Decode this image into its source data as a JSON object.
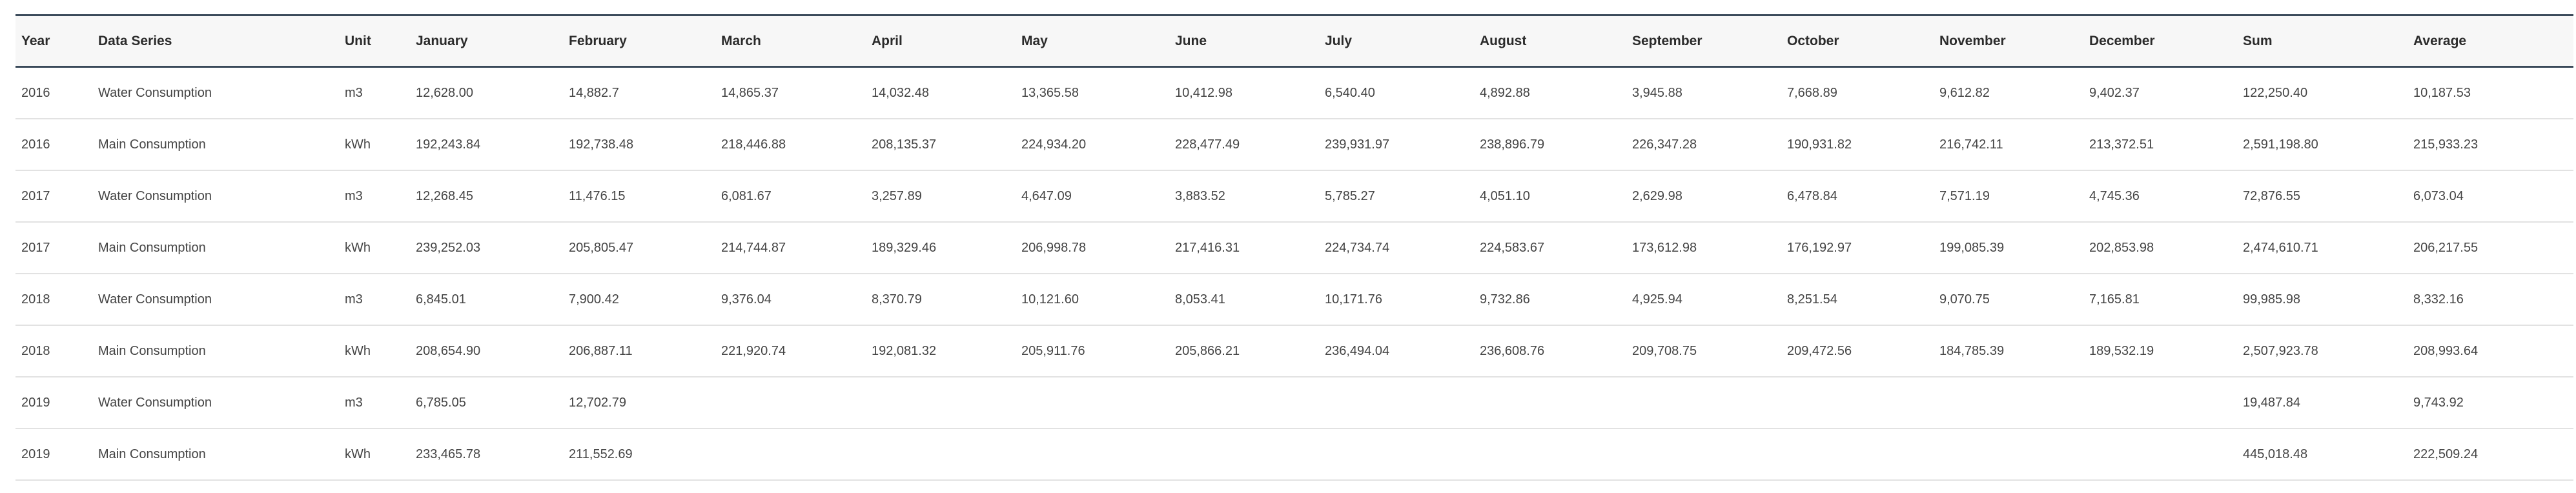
{
  "table": {
    "columns": [
      "Year",
      "Data Series",
      "Unit",
      "January",
      "February",
      "March",
      "April",
      "May",
      "June",
      "July",
      "August",
      "September",
      "October",
      "November",
      "December",
      "Sum",
      "Average"
    ],
    "rows": [
      [
        "2016",
        "Water Consumption",
        "m3",
        "12,628.00",
        "14,882.7",
        "14,865.37",
        "14,032.48",
        "13,365.58",
        "10,412.98",
        "6,540.40",
        "4,892.88",
        "3,945.88",
        "7,668.89",
        "9,612.82",
        "9,402.37",
        "122,250.40",
        "10,187.53"
      ],
      [
        "2016",
        "Main Consumption",
        "kWh",
        "192,243.84",
        "192,738.48",
        "218,446.88",
        "208,135.37",
        "224,934.20",
        "228,477.49",
        "239,931.97",
        "238,896.79",
        "226,347.28",
        "190,931.82",
        "216,742.11",
        "213,372.51",
        "2,591,198.80",
        "215,933.23"
      ],
      [
        "2017",
        "Water Consumption",
        "m3",
        "12,268.45",
        "11,476.15",
        "6,081.67",
        "3,257.89",
        "4,647.09",
        "3,883.52",
        "5,785.27",
        "4,051.10",
        "2,629.98",
        "6,478.84",
        "7,571.19",
        "4,745.36",
        "72,876.55",
        "6,073.04"
      ],
      [
        "2017",
        "Main Consumption",
        "kWh",
        "239,252.03",
        "205,805.47",
        "214,744.87",
        "189,329.46",
        "206,998.78",
        "217,416.31",
        "224,734.74",
        "224,583.67",
        "173,612.98",
        "176,192.97",
        "199,085.39",
        "202,853.98",
        "2,474,610.71",
        "206,217.55"
      ],
      [
        "2018",
        "Water Consumption",
        "m3",
        "6,845.01",
        "7,900.42",
        "9,376.04",
        "8,370.79",
        "10,121.60",
        "8,053.41",
        "10,171.76",
        "9,732.86",
        "4,925.94",
        "8,251.54",
        "9,070.75",
        "7,165.81",
        "99,985.98",
        "8,332.16"
      ],
      [
        "2018",
        "Main Consumption",
        "kWh",
        "208,654.90",
        "206,887.11",
        "221,920.74",
        "192,081.32",
        "205,911.76",
        "205,866.21",
        "236,494.04",
        "236,608.76",
        "209,708.75",
        "209,472.56",
        "184,785.39",
        "189,532.19",
        "2,507,923.78",
        "208,993.64"
      ],
      [
        "2019",
        "Water Consumption",
        "m3",
        "6,785.05",
        "12,702.79",
        "",
        "",
        "",
        "",
        "",
        "",
        "",
        "",
        "",
        "",
        "19,487.84",
        "9,743.92"
      ],
      [
        "2019",
        "Main Consumption",
        "kWh",
        "233,465.78",
        "211,552.69",
        "",
        "",
        "",
        "",
        "",
        "",
        "",
        "",
        "",
        "",
        "445,018.48",
        "222,509.24"
      ]
    ]
  }
}
